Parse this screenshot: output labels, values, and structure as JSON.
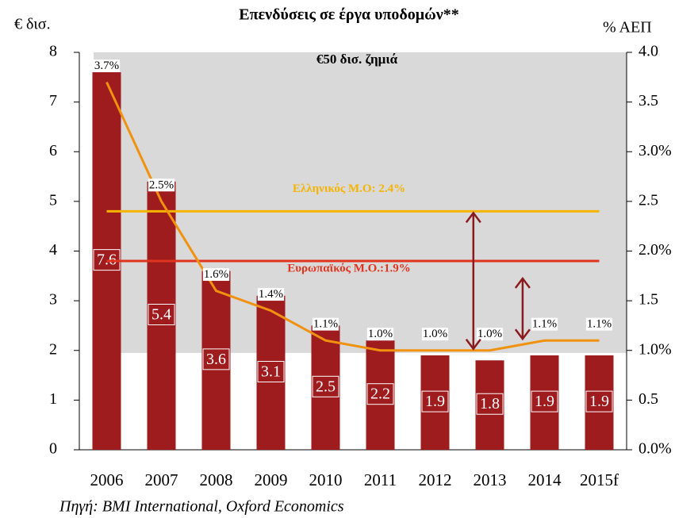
{
  "chart_data": {
    "type": "bar_line",
    "title": "Επενδύσεις σε έργα υποδομών**",
    "y_label": "€ δισ.",
    "y2_label": "% ΑΕΠ",
    "source": "Πηγή: BMI International, Oxford Economics",
    "categories": [
      "2006",
      "2007",
      "2008",
      "2009",
      "2010",
      "2011",
      "2012",
      "2013",
      "2014",
      "2015f"
    ],
    "series": [
      {
        "name": "Επενδύσεις",
        "type": "bar",
        "color": "#9e1b1e",
        "values": [
          7.6,
          5.4,
          3.6,
          3.1,
          2.5,
          2.2,
          1.9,
          1.8,
          1.9,
          1.9
        ]
      },
      {
        "name": "% ΑΕΠ",
        "type": "line",
        "axis": "y2",
        "color": "#f0920f",
        "values": [
          3.7,
          2.5,
          1.6,
          1.4,
          1.1,
          1.0,
          1.0,
          1.0,
          1.1,
          1.1
        ],
        "value_labels": [
          "3.7%",
          "2.5%",
          "1.6%",
          "1.4%",
          "1.1%",
          "1.0%",
          "1.0%",
          "1.0%",
          "1.1%",
          "1.1%"
        ]
      }
    ],
    "reference_lines": [
      {
        "label": "Ελληνικός Μ.Ο: 2.4%",
        "value": 2.4,
        "axis": "y2",
        "color": "#f5b400"
      },
      {
        "label": "Ευρωπαϊκός Μ.Ο.:1.9%",
        "value": 1.9,
        "axis": "y2",
        "color": "#e0341e"
      }
    ],
    "shaded_region": {
      "label": "€50 δισ. ζημιά",
      "from": 1.95,
      "color": "#d9d9d9"
    },
    "ylim": [
      0,
      8
    ],
    "yticks": [
      0,
      1,
      2,
      3,
      4,
      5,
      6,
      7,
      8
    ],
    "y2lim": [
      0,
      4
    ],
    "y2ticks": [
      {
        "value": 0,
        "label": "0.0%"
      },
      0.5,
      {
        "value": 1,
        "label": "1.0%"
      },
      1.5,
      {
        "value": 2,
        "label": "2.0%"
      },
      2.5,
      {
        "value": 3,
        "label": "3.0%"
      },
      3.5,
      {
        "value": 4,
        "label": "4.0"
      }
    ]
  }
}
